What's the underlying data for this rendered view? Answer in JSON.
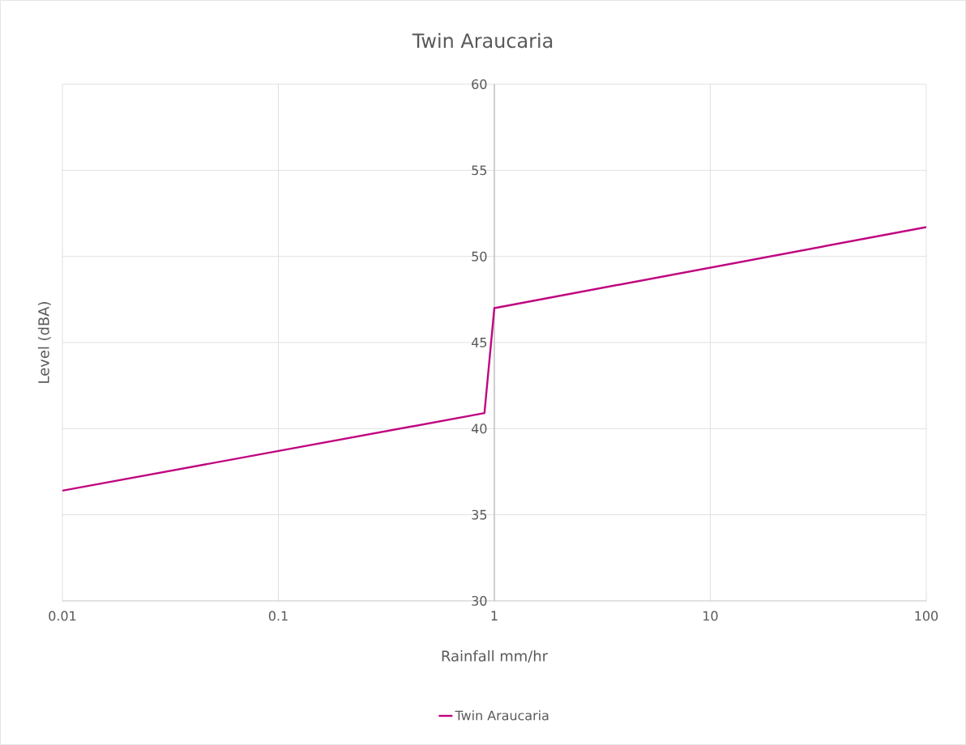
{
  "chart_data": {
    "type": "line",
    "title": "Twin Araucaria",
    "xlabel": "Rainfall mm/hr",
    "ylabel": "Level (dBA)",
    "x": [
      0.01,
      0.9,
      1,
      100
    ],
    "series": [
      {
        "name": "Twin Araucaria",
        "color": "#c0047f",
        "values": [
          36.4,
          40.9,
          47.0,
          51.7
        ]
      }
    ],
    "xlim": [
      0.01,
      100
    ],
    "xticks": [
      0.01,
      0.1,
      1,
      10,
      100
    ],
    "ylim": [
      30,
      60
    ],
    "yticks": [
      30,
      35,
      40,
      45,
      50,
      55,
      60
    ],
    "log": "x",
    "grid": true,
    "legend": "bottom"
  }
}
